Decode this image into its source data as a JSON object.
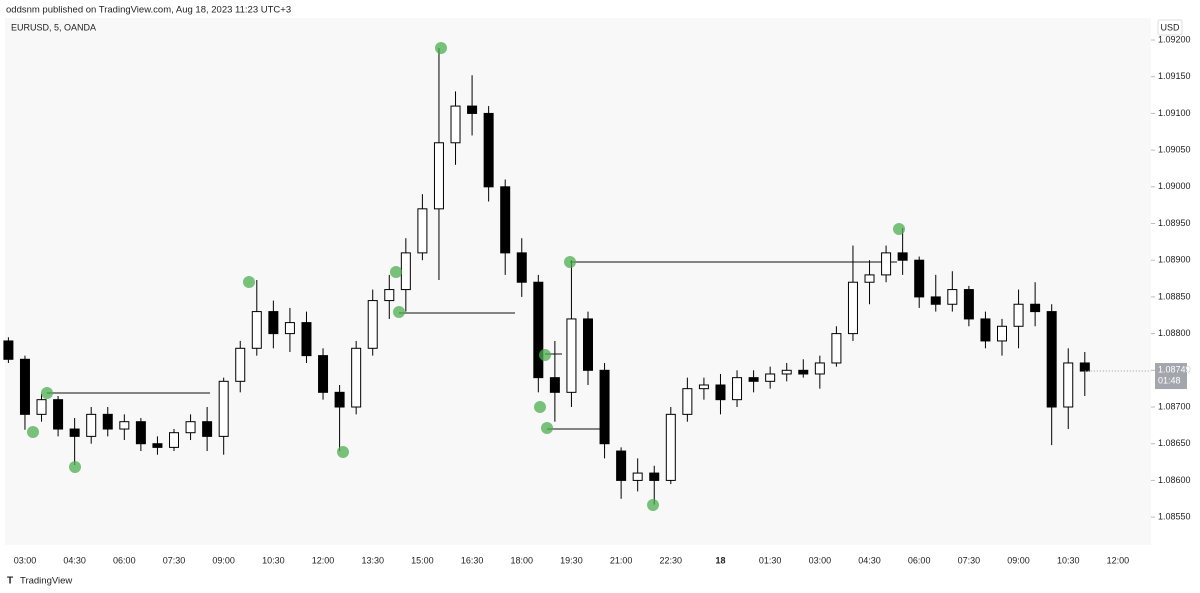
{
  "header": "oddsnm published on TradingView.com, Aug 18, 2023 11:23 UTC+3",
  "footer": "TradingView",
  "chart_data": {
    "type": "candlestick",
    "title": "EURUSD, 5, OANDA",
    "currency": "USD",
    "countdown": "01:48",
    "up_color": "#ffffff",
    "down_color": "#000000",
    "wick_color": "#000000",
    "categories": [
      null,
      "03:00",
      null,
      null,
      "04:30",
      null,
      null,
      "06:00",
      null,
      null,
      "07:30",
      null,
      null,
      "09:00",
      null,
      null,
      "10:30",
      null,
      null,
      "12:00",
      null,
      null,
      "13:30",
      null,
      null,
      "15:00",
      null,
      null,
      "16:30",
      null,
      null,
      "18:00",
      null,
      null,
      "19:30",
      null,
      null,
      "21:00",
      null,
      null,
      "22:30",
      null,
      null,
      "18",
      null,
      null,
      "01:30",
      null,
      null,
      "03:00",
      null,
      null,
      "04:30",
      null,
      null,
      "06:00",
      null,
      null,
      "07:30",
      null,
      null,
      "09:00",
      null,
      null,
      "10:30",
      null,
      null,
      "12:00"
    ],
    "open": [
      1.0879,
      1.08765,
      1.0869,
      1.0871,
      1.0867,
      1.0866,
      1.0869,
      1.0867,
      1.0868,
      1.0865,
      1.08645,
      1.08665,
      1.0868,
      1.0866,
      1.08735,
      1.0878,
      1.0883,
      1.088,
      1.08815,
      1.0877,
      1.0872,
      1.087,
      1.0878,
      1.08845,
      1.0886,
      1.0891,
      1.0897,
      1.0906,
      1.0911,
      1.091,
      1.09,
      1.0891,
      1.0887,
      1.0874,
      1.0872,
      1.0882,
      1.0875,
      1.0864,
      1.086,
      1.0861,
      1.086,
      1.0869,
      1.08725,
      1.0873,
      1.0871,
      1.0874,
      1.08735,
      1.08745,
      1.0875,
      1.08745,
      1.0876,
      1.088,
      1.0887,
      1.0888,
      1.0891,
      1.089,
      1.0885,
      1.0884,
      1.0886,
      1.0882,
      1.0879,
      1.0881,
      1.0884,
      1.0883,
      1.087,
      1.0876,
      null,
      null
    ],
    "high": [
      1.08795,
      1.0877,
      1.08718,
      1.08715,
      1.08685,
      1.087,
      1.087,
      1.0869,
      1.08685,
      1.0866,
      1.0867,
      1.0869,
      1.087,
      1.0874,
      1.0879,
      1.08873,
      1.08845,
      1.08835,
      1.0883,
      1.0878,
      1.0873,
      1.0879,
      1.0886,
      1.0888,
      1.0893,
      1.0899,
      1.09189,
      1.0913,
      1.09152,
      1.0911,
      1.0901,
      1.0893,
      1.0888,
      1.0879,
      1.089,
      1.0883,
      1.0876,
      1.08645,
      1.0863,
      1.0862,
      1.087,
      1.0874,
      1.0874,
      1.08745,
      1.0875,
      1.0875,
      1.08755,
      1.0876,
      1.08765,
      1.0877,
      1.0881,
      1.0892,
      1.089,
      1.0892,
      1.08944,
      1.08905,
      1.0888,
      1.08885,
      1.08865,
      1.0883,
      1.0882,
      1.0886,
      1.0887,
      1.0884,
      1.0878,
      1.08775,
      null,
      null
    ],
    "low": [
      1.0876,
      1.08669,
      1.0868,
      1.0866,
      1.08621,
      1.0865,
      1.0866,
      1.08655,
      1.0864,
      1.08635,
      1.0864,
      1.08655,
      1.0864,
      1.08635,
      1.0872,
      1.0877,
      1.0878,
      1.08775,
      1.0876,
      1.0871,
      1.0864,
      1.0869,
      1.0877,
      1.0882,
      1.0883,
      1.089,
      1.08873,
      1.0903,
      1.0907,
      1.0898,
      1.0888,
      1.0885,
      1.0872,
      1.0868,
      1.087,
      1.0873,
      1.0863,
      1.08575,
      1.08585,
      1.08567,
      1.08595,
      1.0868,
      1.0871,
      1.0869,
      1.087,
      1.0872,
      1.08725,
      1.08735,
      1.0874,
      1.08725,
      1.08755,
      1.0879,
      1.0884,
      1.0887,
      1.0888,
      1.08835,
      1.0883,
      1.0883,
      1.0881,
      1.0878,
      1.0877,
      1.0878,
      1.0881,
      1.08648,
      1.0867,
      1.08715,
      null,
      null
    ],
    "close": [
      1.08765,
      1.0869,
      1.0871,
      1.0867,
      1.0866,
      1.0869,
      1.0867,
      1.0868,
      1.0865,
      1.08645,
      1.08665,
      1.0868,
      1.0866,
      1.08735,
      1.0878,
      1.0883,
      1.088,
      1.08815,
      1.0877,
      1.0872,
      1.087,
      1.0878,
      1.08845,
      1.0886,
      1.0891,
      1.0897,
      1.0906,
      1.0911,
      1.091,
      1.09,
      1.0891,
      1.0887,
      1.0874,
      1.0872,
      1.0882,
      1.0875,
      1.0865,
      1.086,
      1.0861,
      1.086,
      1.0869,
      1.08725,
      1.0873,
      1.0871,
      1.0874,
      1.08735,
      1.08745,
      1.0875,
      1.08745,
      1.0876,
      1.088,
      1.0887,
      1.0888,
      1.0891,
      1.089,
      1.0885,
      1.0884,
      1.0886,
      1.0882,
      1.0879,
      1.0881,
      1.0884,
      1.0883,
      1.087,
      1.0876,
      1.08749,
      null,
      null
    ],
    "ylim": [
      1.08512,
      1.0923
    ],
    "yticks": [
      {
        "value": 1.0855,
        "label": "1.08550"
      },
      {
        "value": 1.086,
        "label": "1.08600"
      },
      {
        "value": 1.0865,
        "label": "1.08650"
      },
      {
        "value": 1.087,
        "label": "1.08700"
      },
      {
        "value": 1.0875,
        "label": "1.08750"
      },
      {
        "value": 1.088,
        "label": "1.08800"
      },
      {
        "value": 1.0885,
        "label": "1.08850"
      },
      {
        "value": 1.089,
        "label": "1.08900"
      },
      {
        "value": 1.0895,
        "label": "1.08950"
      },
      {
        "value": 1.09,
        "label": "1.09000"
      },
      {
        "value": 1.0905,
        "label": "1.09050"
      },
      {
        "value": 1.091,
        "label": "1.09100"
      },
      {
        "value": 1.0915,
        "label": "1.09150"
      },
      {
        "value": 1.092,
        "label": "1.09200"
      }
    ],
    "grid": false
  }
}
